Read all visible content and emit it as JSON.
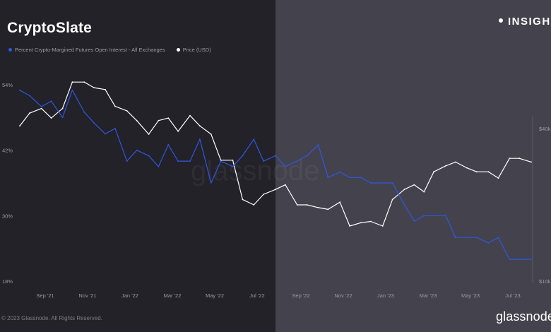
{
  "header": {
    "brand": "CryptoSlate",
    "badge": "INSIGH"
  },
  "footer": {
    "copyright": "2023 Glassnode. All Rights Reserved.",
    "logo": "glassnode"
  },
  "watermark": "glassnode",
  "colors": {
    "bg_left": "#232229",
    "bg_right": "#44434d",
    "series_oi": "#2f57e0",
    "series_price": "#ffffff"
  },
  "chart_data": {
    "type": "line",
    "x_ticks": [
      "Sep '21",
      "Nov '21",
      "Jan '22",
      "Mar '22",
      "May '22",
      "Jul '22",
      "Sep '22",
      "Nov '22",
      "Jan '23",
      "Mar '23",
      "May '23",
      "Jul '23"
    ],
    "y_left_ticks": [
      "54%",
      "42%",
      "30%",
      "18%"
    ],
    "y_right_ticks": [
      "$40k",
      "$10k"
    ],
    "y_left_range": [
      18,
      54
    ],
    "y_right_log_range": [
      10000,
      40000
    ],
    "legend_position": "top-left",
    "grid": false,
    "series": [
      {
        "name": "Percent Crypto-Margined Futures Open Interest - All Exchanges",
        "axis": "left",
        "color": "#2f57e0",
        "x": [
          "2021-08-01",
          "2021-08-15",
          "2021-09-01",
          "2021-09-15",
          "2021-10-01",
          "2021-10-15",
          "2021-11-01",
          "2021-11-15",
          "2021-12-01",
          "2021-12-15",
          "2022-01-01",
          "2022-01-15",
          "2022-02-01",
          "2022-02-15",
          "2022-03-01",
          "2022-03-15",
          "2022-04-01",
          "2022-04-15",
          "2022-05-01",
          "2022-05-15",
          "2022-06-01",
          "2022-06-15",
          "2022-07-01",
          "2022-07-15",
          "2022-08-01",
          "2022-08-15",
          "2022-09-01",
          "2022-09-15",
          "2022-10-01",
          "2022-10-15",
          "2022-11-01",
          "2022-11-15",
          "2022-12-01",
          "2022-12-15",
          "2023-01-01",
          "2023-01-15",
          "2023-02-01",
          "2023-02-15",
          "2023-03-01",
          "2023-03-15",
          "2023-04-01",
          "2023-04-15",
          "2023-05-01",
          "2023-05-15",
          "2023-06-01",
          "2023-06-15",
          "2023-07-01",
          "2023-07-15",
          "2023-08-01"
        ],
        "y": [
          53,
          52,
          50,
          51,
          48,
          53,
          49,
          47,
          45,
          46,
          40,
          42,
          41,
          39,
          43,
          40,
          40,
          44,
          36,
          40,
          39,
          41,
          44,
          40,
          41,
          39,
          40,
          41,
          43,
          37,
          38,
          37,
          37,
          36,
          36,
          36,
          32,
          29,
          30,
          30,
          30,
          26,
          26,
          26,
          25,
          26,
          22,
          22,
          22
        ]
      },
      {
        "name": "Price (USD)",
        "axis": "right",
        "color": "#ffffff",
        "x": [
          "2021-08-01",
          "2021-08-15",
          "2021-09-01",
          "2021-09-15",
          "2021-10-01",
          "2021-10-15",
          "2021-11-01",
          "2021-11-15",
          "2021-12-01",
          "2021-12-15",
          "2022-01-01",
          "2022-01-15",
          "2022-02-01",
          "2022-02-15",
          "2022-03-01",
          "2022-03-15",
          "2022-04-01",
          "2022-04-15",
          "2022-05-01",
          "2022-05-15",
          "2022-06-01",
          "2022-06-15",
          "2022-07-01",
          "2022-07-15",
          "2022-08-01",
          "2022-08-15",
          "2022-09-01",
          "2022-09-15",
          "2022-10-01",
          "2022-10-15",
          "2022-11-01",
          "2022-11-15",
          "2022-12-01",
          "2022-12-15",
          "2023-01-01",
          "2023-01-15",
          "2023-02-01",
          "2023-02-15",
          "2023-03-01",
          "2023-03-15",
          "2023-04-01",
          "2023-04-15",
          "2023-05-01",
          "2023-05-15",
          "2023-06-01",
          "2023-06-15",
          "2023-07-01",
          "2023-07-15",
          "2023-08-01"
        ],
        "y": [
          41000,
          46000,
          48000,
          44000,
          48000,
          61000,
          61000,
          58000,
          57000,
          49000,
          47000,
          43000,
          38000,
          43000,
          44000,
          39000,
          45000,
          41000,
          38000,
          30000,
          30000,
          21000,
          20000,
          22000,
          23000,
          24000,
          20000,
          20000,
          19500,
          19200,
          20500,
          16500,
          17000,
          17200,
          16500,
          21000,
          23000,
          24000,
          22500,
          27000,
          28500,
          29500,
          28000,
          27000,
          27000,
          25500,
          30500,
          30500,
          29500
        ]
      }
    ]
  }
}
